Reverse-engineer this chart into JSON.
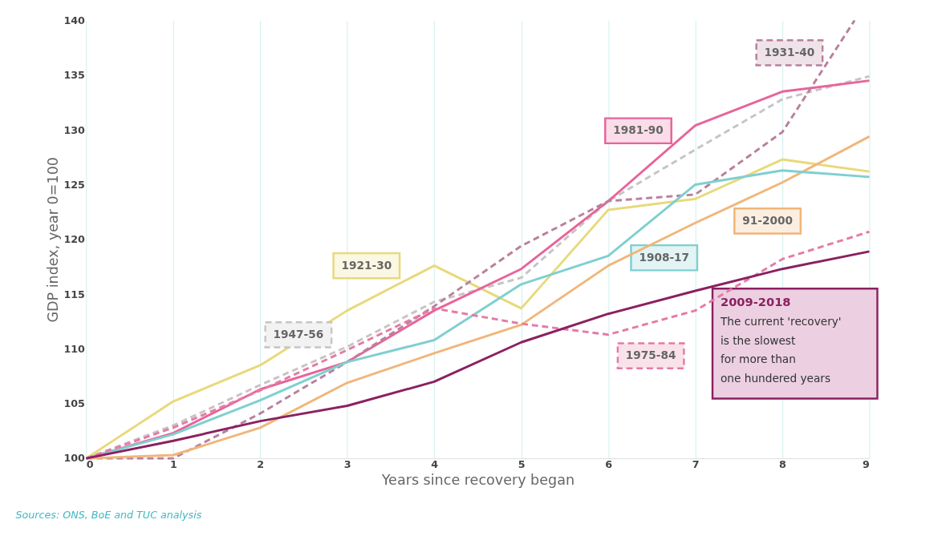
{
  "chart_data": {
    "type": "line",
    "xlabel": "Years since recovery began",
    "ylabel": "GDP index, year 0=100",
    "x": [
      0,
      1,
      2,
      3,
      4,
      5,
      6,
      7,
      8,
      9
    ],
    "series": [
      {
        "name": "1921-30",
        "color": "#e8d97a",
        "line_style": "solid",
        "values": [
          100,
          105.2,
          108.5,
          113.5,
          117.6,
          113.7,
          122.7,
          123.7,
          127.3,
          126.2
        ]
      },
      {
        "name": "1947-56",
        "color": "#c8c4c4",
        "line_style": "dashed",
        "values": [
          100,
          103.0,
          106.7,
          110.2,
          114.3,
          116.5,
          123.5,
          128.2,
          132.8,
          134.9
        ]
      },
      {
        "name": "1981-90",
        "color": "#e8649a",
        "line_style": "solid",
        "values": [
          100,
          102.3,
          106.3,
          108.8,
          113.5,
          117.3,
          123.5,
          130.4,
          133.5,
          134.5
        ]
      },
      {
        "name": "1931-40",
        "color": "#b8809c",
        "line_style": "dashed",
        "x": [
          0,
          1,
          2,
          3,
          4,
          5,
          6,
          7,
          8,
          8.83
        ],
        "values": [
          100,
          100,
          104.1,
          108.8,
          113.9,
          119.4,
          123.5,
          124.1,
          129.8,
          140
        ]
      },
      {
        "name": "91-2000",
        "color": "#f0b67a",
        "line_style": "solid",
        "values": [
          100,
          100.3,
          102.8,
          106.9,
          109.6,
          112.2,
          117.6,
          121.5,
          125.2,
          129.4
        ]
      },
      {
        "name": "1908-17",
        "color": "#7fcfd0",
        "line_style": "solid",
        "values": [
          100,
          102.2,
          105.3,
          108.8,
          110.8,
          115.9,
          118.5,
          125.0,
          126.3,
          125.7
        ]
      },
      {
        "name": "1975-84",
        "color": "#e67aa6",
        "line_style": "dashed",
        "values": [
          100,
          102.8,
          106.2,
          109.9,
          113.7,
          112.3,
          111.3,
          113.5,
          118.2,
          120.7
        ]
      },
      {
        "name": "2009-2018",
        "color": "#8b2060",
        "line_style": "solid",
        "values": [
          100,
          101.6,
          103.4,
          104.8,
          107.0,
          110.6,
          113.2,
          115.3,
          117.3,
          118.9
        ]
      }
    ],
    "annotations": [
      "The current 'recovery'\nis the slowest\nfor more than\none hundered years",
      "Sources: ONS, BoE and TUC analysis"
    ],
    "xlim": [
      0,
      9
    ],
    "xticks": [
      0,
      1,
      2,
      3,
      4,
      5,
      6,
      7,
      8,
      9
    ],
    "ylim": [
      100,
      140
    ],
    "yticks": [
      100,
      105,
      110,
      115,
      120,
      125,
      130,
      135,
      140
    ],
    "grid": "x",
    "marker": "none"
  }
}
